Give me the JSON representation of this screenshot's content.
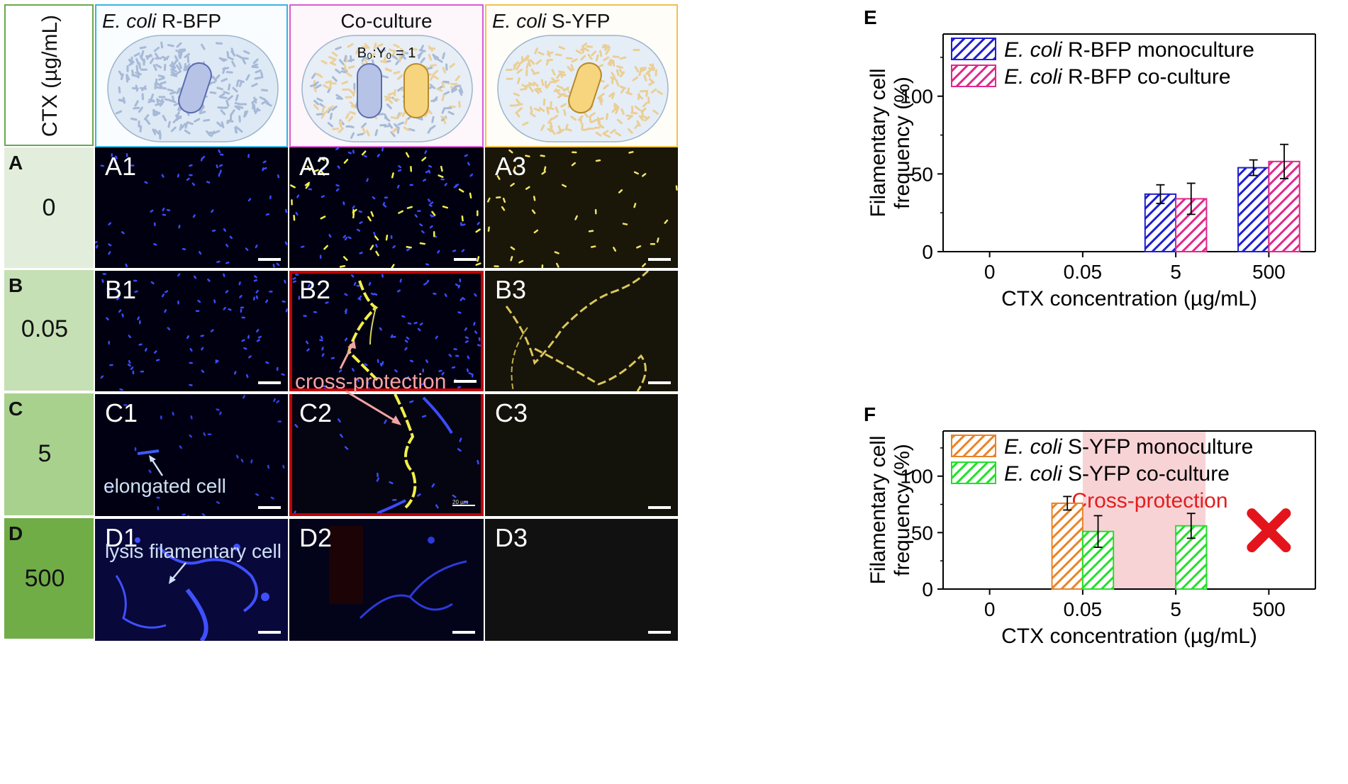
{
  "left_panel": {
    "axis_header": "CTX (µg/mL)",
    "columns": [
      {
        "id": "col1",
        "title_italic": "E. coli",
        "title_rest": " R-BFP",
        "border": "#39b3e6"
      },
      {
        "id": "col2",
        "title_italic": "",
        "title_rest": "Co-culture",
        "border": "#d75bd2",
        "ratio": "B₀:Y₀ = 1"
      },
      {
        "id": "col3",
        "title_italic": "E. coli",
        "title_rest": " S-YFP",
        "border": "#f1c04a"
      }
    ],
    "rows": [
      {
        "letter": "A",
        "conc": "0",
        "bg": "#e2eedb",
        "tiles": [
          "A1",
          "A2",
          "A3"
        ]
      },
      {
        "letter": "B",
        "conc": "0.05",
        "bg": "#c5e0b4",
        "tiles": [
          "B1",
          "B2",
          "B3"
        ]
      },
      {
        "letter": "C",
        "conc": "5",
        "bg": "#a9d18e",
        "tiles": [
          "C1",
          "C2",
          "C3"
        ]
      },
      {
        "letter": "D",
        "conc": "500",
        "bg": "#70ad47",
        "tiles": [
          "D1",
          "D2",
          "D3"
        ]
      }
    ],
    "annotations": {
      "cross_protection": "cross-protection",
      "elongated_cell": "elongated cell",
      "lysis": "lysis filamentary cell",
      "scale_text": "20 µm"
    }
  },
  "chart_data": [
    {
      "panel": "E",
      "type": "bar",
      "categories": [
        "0",
        "0.05",
        "5",
        "500"
      ],
      "series": [
        {
          "name": "E. coli R-BFP monoculture",
          "color": "#1f1fd1",
          "values": [
            0,
            0,
            37,
            54
          ],
          "errors": [
            0,
            0,
            6,
            5
          ]
        },
        {
          "name": "E. coli R-BFP co-culture",
          "color": "#e0288a",
          "values": [
            0,
            0,
            34,
            58
          ],
          "errors": [
            0,
            0,
            10,
            11
          ]
        }
      ],
      "xlabel": "CTX concentration (µg/mL)",
      "ylabel": "Filamentary cell frequency (%)",
      "ylim": [
        0,
        140
      ],
      "yticks": [
        0,
        50,
        100
      ],
      "legend": "top-left"
    },
    {
      "panel": "F",
      "type": "bar",
      "categories": [
        "0",
        "0.05",
        "5",
        "500"
      ],
      "series": [
        {
          "name": "E. coli S-YFP monoculture",
          "color": "#e8832a",
          "values": [
            0,
            76,
            0,
            0
          ],
          "errors": [
            0,
            6,
            0,
            0
          ]
        },
        {
          "name": "E. coli S-YFP co-culture",
          "color": "#22e02a",
          "values": [
            0,
            51,
            56,
            0
          ],
          "errors": [
            0,
            14,
            11,
            0
          ]
        }
      ],
      "xlabel": "CTX concentration (µg/mL)",
      "ylabel": "Filamentary cell frequency (%)",
      "ylim": [
        0,
        140
      ],
      "yticks": [
        0,
        50,
        100
      ],
      "legend": "top-left",
      "highlight": {
        "label": "Cross-protection",
        "from": "0.05",
        "to": "5",
        "color": "#f7d3d6",
        "label_color": "#e21e1e"
      },
      "marker": {
        "category": "500",
        "y": 52,
        "symbol": "X",
        "color": "#e3141b"
      }
    }
  ]
}
